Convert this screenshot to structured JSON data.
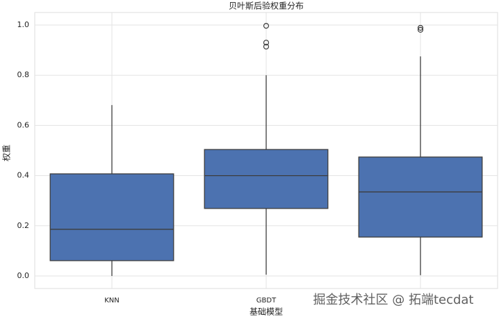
{
  "chart_data": {
    "type": "box",
    "title": "贝叶斯后验权重分布",
    "x_label": "基础模型",
    "y_label": "权重",
    "categories": [
      "KNN",
      "GBDT",
      null
    ],
    "color": "#4c72b0",
    "boxes": [
      {
        "whisker_low": 0.0,
        "q1": 0.061,
        "median": 0.186,
        "q3": 0.407,
        "whisker_high": 0.681,
        "outliers": []
      },
      {
        "whisker_low": 0.005,
        "q1": 0.269,
        "median": 0.4,
        "q3": 0.504,
        "whisker_high": 0.8,
        "outliers": [
          0.997,
          0.93,
          0.914
        ]
      },
      {
        "whisker_low": 0.003,
        "q1": 0.155,
        "median": 0.335,
        "q3": 0.474,
        "whisker_high": 0.875,
        "outliers": [
          0.989,
          0.981
        ]
      }
    ],
    "ylim": [
      -0.05,
      1.05
    ],
    "yticks": [
      {
        "value": 0,
        "label": "0.0"
      },
      0.2,
      0.4,
      0.6,
      0.8,
      {
        "value": 1,
        "label": "1.0"
      }
    ],
    "grid": true
  },
  "watermark": "掘金技术社区 @ 拓端tecdat"
}
